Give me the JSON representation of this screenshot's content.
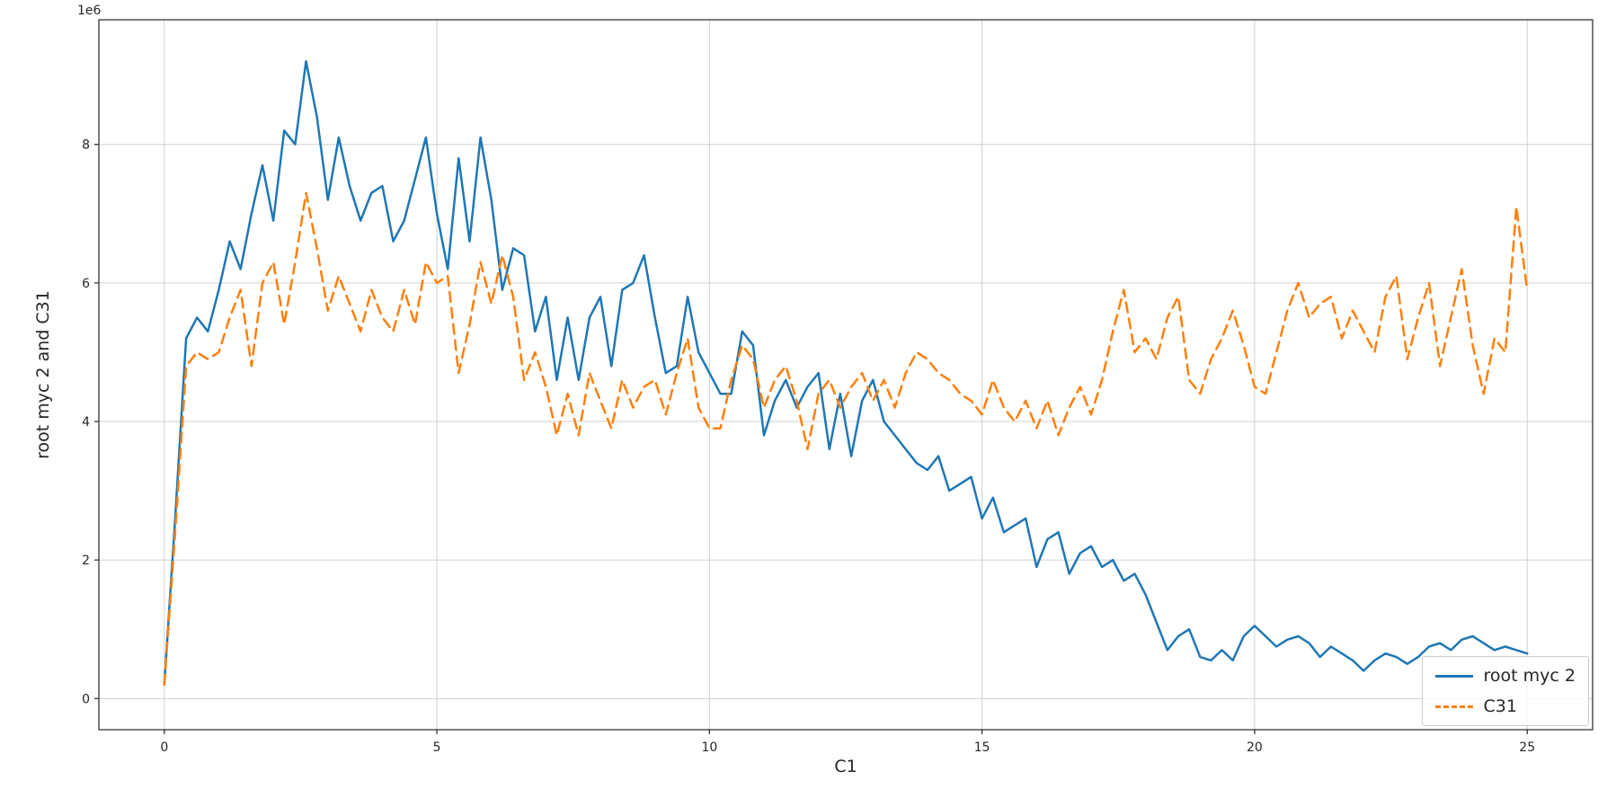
{
  "figure": {
    "background": "#ffffff",
    "frame_color": "#262626",
    "grid_color": "#d0d0d0"
  },
  "chart_data": {
    "type": "line",
    "title": "",
    "xlabel": "C1",
    "ylabel": "root myc 2 and C31",
    "y_offset_label": "1e6",
    "y_unit_multiplier": 1000000,
    "grid": true,
    "legend_position": "lower right",
    "xlim": [
      -1.2,
      26.2
    ],
    "ylim": [
      -0.45,
      9.8
    ],
    "xticks": {
      "values": [
        0,
        5,
        10,
        15,
        20,
        25
      ],
      "labels": [
        "0",
        "5",
        "10",
        "15",
        "20",
        "25"
      ]
    },
    "yticks": {
      "values": [
        0,
        2,
        4,
        6,
        8
      ],
      "labels": [
        "0",
        "2",
        "4",
        "6",
        "8"
      ]
    },
    "x": [
      0,
      0.2,
      0.4,
      0.6,
      0.8,
      1,
      1.2,
      1.4,
      1.6,
      1.8,
      2,
      2.2,
      2.4,
      2.6,
      2.8,
      3,
      3.2,
      3.4,
      3.6,
      3.8,
      4,
      4.2,
      4.4,
      4.6,
      4.8,
      5,
      5.2,
      5.4,
      5.6,
      5.8,
      6,
      6.2,
      6.4,
      6.6,
      6.8,
      7,
      7.2,
      7.4,
      7.6,
      7.8,
      8,
      8.2,
      8.4,
      8.6,
      8.8,
      9,
      9.2,
      9.4,
      9.6,
      9.8,
      10,
      10.2,
      10.4,
      10.6,
      10.8,
      11,
      11.2,
      11.4,
      11.6,
      11.8,
      12,
      12.2,
      12.4,
      12.6,
      12.8,
      13,
      13.2,
      13.4,
      13.6,
      13.8,
      14,
      14.2,
      14.4,
      14.6,
      14.8,
      15,
      15.2,
      15.4,
      15.6,
      15.8,
      16,
      16.2,
      16.4,
      16.6,
      16.8,
      17,
      17.2,
      17.4,
      17.6,
      17.8,
      18,
      18.2,
      18.4,
      18.6,
      18.8,
      19,
      19.2,
      19.4,
      19.6,
      19.8,
      20,
      20.2,
      20.4,
      20.6,
      20.8,
      21,
      21.2,
      21.4,
      21.6,
      21.8,
      22,
      22.2,
      22.4,
      22.6,
      22.8,
      23,
      23.2,
      23.4,
      23.6,
      23.8,
      24,
      24.2,
      24.4,
      24.6,
      24.8,
      25
    ],
    "series": [
      {
        "name": "root myc 2",
        "color": "#1f77b4",
        "style": "solid",
        "linewidth": 2.5,
        "values": [
          0.2,
          2.6,
          5.2,
          5.5,
          5.3,
          5.9,
          6.6,
          6.2,
          7.0,
          7.7,
          6.9,
          8.2,
          8.0,
          9.2,
          8.4,
          7.2,
          8.1,
          7.4,
          6.9,
          7.3,
          7.4,
          6.6,
          6.9,
          7.5,
          8.1,
          7.0,
          6.2,
          7.8,
          6.6,
          8.1,
          7.2,
          5.9,
          6.5,
          6.4,
          5.3,
          5.8,
          4.6,
          5.5,
          4.6,
          5.5,
          5.8,
          4.8,
          5.9,
          6.0,
          6.4,
          5.5,
          4.7,
          4.8,
          5.8,
          5.0,
          4.7,
          4.4,
          4.4,
          5.3,
          5.1,
          3.8,
          4.3,
          4.6,
          4.2,
          4.5,
          4.7,
          3.6,
          4.4,
          3.5,
          4.3,
          4.6,
          4.0,
          3.8,
          3.6,
          3.4,
          3.3,
          3.5,
          3.0,
          3.1,
          3.2,
          2.6,
          2.9,
          2.4,
          2.5,
          2.6,
          1.9,
          2.3,
          2.4,
          1.8,
          2.1,
          2.2,
          1.9,
          2.0,
          1.7,
          1.8,
          1.5,
          1.1,
          0.7,
          0.9,
          1.0,
          0.6,
          0.55,
          0.7,
          0.55,
          0.9,
          1.05,
          0.9,
          0.75,
          0.85,
          0.9,
          0.8,
          0.6,
          0.75,
          0.65,
          0.55,
          0.4,
          0.55,
          0.65,
          0.6,
          0.5,
          0.6,
          0.75,
          0.8,
          0.7,
          0.85,
          0.9,
          0.8,
          0.7,
          0.75,
          0.7,
          0.65
        ]
      },
      {
        "name": "C31",
        "color": "#ff7f0e",
        "style": "dashed",
        "linewidth": 2.5,
        "values": [
          0.2,
          2.4,
          4.8,
          5.0,
          4.9,
          5.0,
          5.5,
          5.9,
          4.8,
          6.0,
          6.3,
          5.4,
          6.3,
          7.3,
          6.5,
          5.6,
          6.1,
          5.7,
          5.3,
          5.9,
          5.5,
          5.3,
          5.9,
          5.4,
          6.3,
          6.0,
          6.1,
          4.7,
          5.4,
          6.3,
          5.7,
          6.4,
          5.8,
          4.6,
          5.0,
          4.5,
          3.8,
          4.4,
          3.8,
          4.7,
          4.3,
          3.9,
          4.6,
          4.2,
          4.5,
          4.6,
          4.1,
          4.7,
          5.2,
          4.2,
          3.9,
          3.9,
          4.6,
          5.1,
          4.9,
          4.2,
          4.6,
          4.8,
          4.3,
          3.6,
          4.4,
          4.6,
          4.2,
          4.5,
          4.7,
          4.3,
          4.6,
          4.2,
          4.7,
          5.0,
          4.9,
          4.7,
          4.6,
          4.4,
          4.3,
          4.1,
          4.6,
          4.2,
          4.0,
          4.3,
          3.9,
          4.3,
          3.8,
          4.2,
          4.5,
          4.1,
          4.6,
          5.3,
          5.9,
          5.0,
          5.2,
          4.9,
          5.5,
          5.8,
          4.6,
          4.4,
          4.9,
          5.2,
          5.6,
          5.1,
          4.5,
          4.4,
          5.0,
          5.6,
          6.0,
          5.5,
          5.7,
          5.8,
          5.2,
          5.6,
          5.3,
          5.0,
          5.8,
          6.1,
          4.9,
          5.5,
          6.0,
          4.8,
          5.5,
          6.2,
          5.1,
          4.4,
          5.2,
          5.0,
          7.1,
          5.9
        ]
      }
    ]
  }
}
